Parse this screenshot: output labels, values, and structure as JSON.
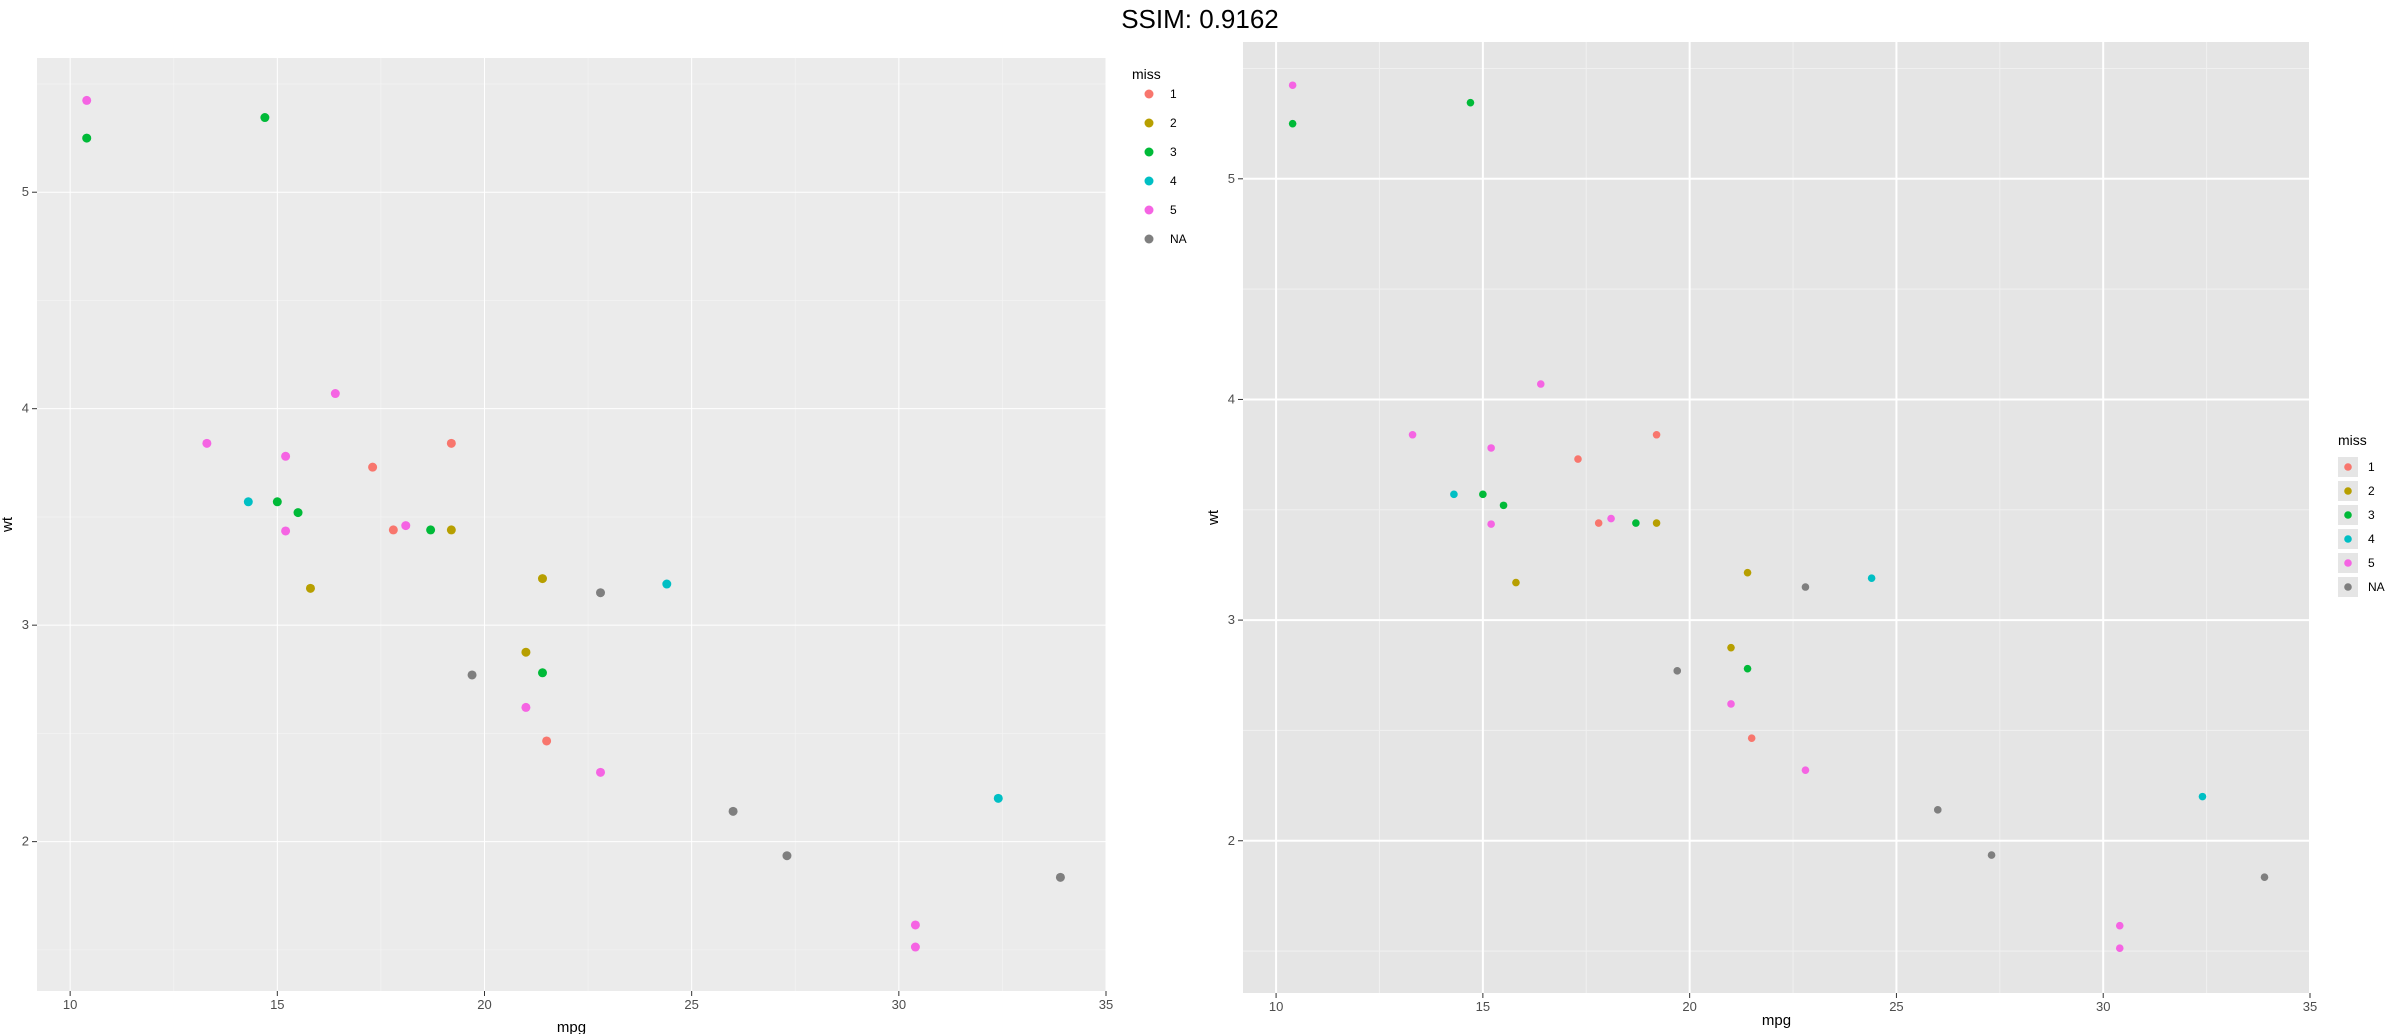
{
  "header": {
    "title": "SSIM: 0.9162"
  },
  "chart_data": [
    {
      "type": "scatter",
      "xlabel": "mpg",
      "ylabel": "wt",
      "xlim": [
        9.2,
        35.0
      ],
      "ylim": [
        1.31,
        5.62
      ],
      "x_ticks": [
        10,
        15,
        20,
        25,
        30,
        35
      ],
      "y_ticks": [
        2,
        3,
        4,
        5
      ],
      "grid": true,
      "legend": {
        "title": "miss",
        "placement": "right-top"
      },
      "series": [
        {
          "name": "1",
          "color": "#F8766D",
          "points": [
            [
              17.3,
              3.73
            ],
            [
              19.2,
              3.84
            ],
            [
              17.8,
              3.44
            ],
            [
              21.5,
              2.465
            ]
          ]
        },
        {
          "name": "2",
          "color": "#B79F00",
          "points": [
            [
              15.8,
              3.17
            ],
            [
              19.2,
              3.44
            ],
            [
              21.4,
              3.215
            ],
            [
              21.0,
              2.875
            ]
          ]
        },
        {
          "name": "3",
          "color": "#00BA38",
          "points": [
            [
              10.4,
              5.25
            ],
            [
              14.7,
              5.345
            ],
            [
              15.0,
              3.57
            ],
            [
              15.5,
              3.52
            ],
            [
              18.7,
              3.44
            ],
            [
              21.4,
              2.78
            ]
          ]
        },
        {
          "name": "4",
          "color": "#00BFC4",
          "points": [
            [
              14.3,
              3.57
            ],
            [
              24.4,
              3.19
            ],
            [
              32.4,
              2.2
            ]
          ]
        },
        {
          "name": "5",
          "color": "#F564E3",
          "points": [
            [
              10.4,
              5.424
            ],
            [
              16.4,
              4.07
            ],
            [
              13.3,
              3.84
            ],
            [
              15.2,
              3.78
            ],
            [
              15.2,
              3.435
            ],
            [
              18.1,
              3.46
            ],
            [
              21.0,
              2.62
            ],
            [
              22.8,
              2.32
            ],
            [
              30.4,
              1.615
            ],
            [
              30.4,
              1.513
            ]
          ]
        },
        {
          "name": "NA",
          "color": "#7F7F7F",
          "points": [
            [
              22.8,
              3.15
            ],
            [
              19.7,
              2.77
            ],
            [
              26.0,
              2.14
            ],
            [
              27.3,
              1.935
            ],
            [
              33.9,
              1.835
            ]
          ]
        }
      ]
    },
    {
      "type": "scatter",
      "xlabel": "mpg",
      "ylabel": "wt",
      "xlim": [
        9.2,
        35.0
      ],
      "ylim": [
        1.31,
        5.62
      ],
      "x_ticks": [
        10,
        15,
        20,
        25,
        30,
        35
      ],
      "y_ticks": [
        2,
        3,
        4,
        5
      ],
      "grid": true,
      "legend": {
        "title": "miss",
        "placement": "right-middle"
      },
      "series": [
        {
          "name": "1",
          "color": "#F8766D",
          "points": [
            [
              17.3,
              3.73
            ],
            [
              19.2,
              3.84
            ],
            [
              17.8,
              3.44
            ],
            [
              21.5,
              2.465
            ]
          ]
        },
        {
          "name": "2",
          "color": "#B79F00",
          "points": [
            [
              15.8,
              3.17
            ],
            [
              19.2,
              3.44
            ],
            [
              21.4,
              3.215
            ],
            [
              21.0,
              2.875
            ]
          ]
        },
        {
          "name": "3",
          "color": "#00BA38",
          "points": [
            [
              10.4,
              5.25
            ],
            [
              14.7,
              5.345
            ],
            [
              15.0,
              3.57
            ],
            [
              15.5,
              3.52
            ],
            [
              18.7,
              3.44
            ],
            [
              21.4,
              2.78
            ]
          ]
        },
        {
          "name": "4",
          "color": "#00BFC4",
          "points": [
            [
              14.3,
              3.57
            ],
            [
              24.4,
              3.19
            ],
            [
              32.4,
              2.2
            ]
          ]
        },
        {
          "name": "5",
          "color": "#F564E3",
          "points": [
            [
              10.4,
              5.424
            ],
            [
              16.4,
              4.07
            ],
            [
              13.3,
              3.84
            ],
            [
              15.2,
              3.78
            ],
            [
              15.2,
              3.435
            ],
            [
              18.1,
              3.46
            ],
            [
              21.0,
              2.62
            ],
            [
              22.8,
              2.32
            ],
            [
              30.4,
              1.615
            ],
            [
              30.4,
              1.513
            ]
          ]
        },
        {
          "name": "NA",
          "color": "#7F7F7F",
          "points": [
            [
              22.8,
              3.15
            ],
            [
              19.7,
              2.77
            ],
            [
              26.0,
              2.14
            ],
            [
              27.3,
              1.935
            ],
            [
              33.9,
              1.835
            ]
          ]
        }
      ]
    }
  ]
}
